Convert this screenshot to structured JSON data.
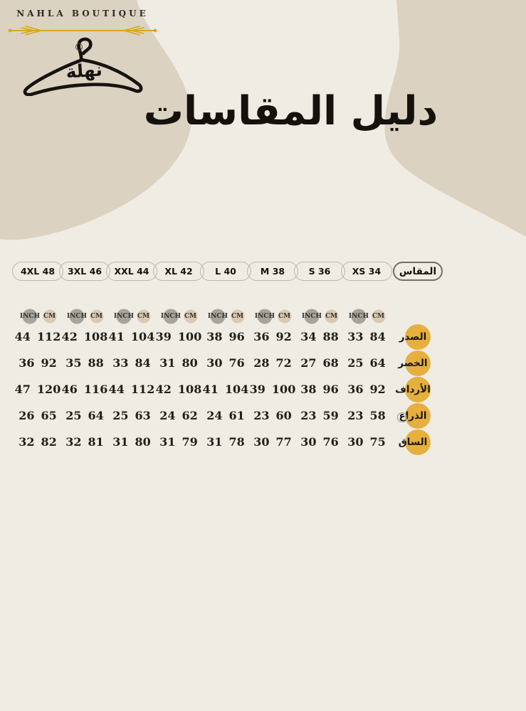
{
  "brand": {
    "name": "NAHLA BOUTIQUE",
    "logo_calligraphy": "نهلة"
  },
  "title": "دليل المقاسات",
  "colors": {
    "background": "#EFECE3",
    "blob_tan": "#DCD2C1",
    "accent_gold_circle": "#E6AF3E",
    "divider_gold": "#D9A521",
    "inch_circle_gray": "#A7A39D",
    "cm_circle_beige": "#D9CAB2",
    "text_black": "#15120e"
  },
  "size_chart": {
    "size_header_label": "المقاس",
    "sizes": [
      "4XL 48",
      "3XL 46",
      "XXL 44",
      "XL 42",
      "L 40",
      "M 38",
      "S 36",
      "XS 34"
    ],
    "unit_labels": {
      "inch": "INCH",
      "cm": "CM"
    },
    "rows": [
      {
        "label": "الصدر",
        "values": [
          [
            44,
            112
          ],
          [
            42,
            108
          ],
          [
            41,
            104
          ],
          [
            39,
            100
          ],
          [
            38,
            96
          ],
          [
            36,
            92
          ],
          [
            34,
            88
          ],
          [
            33,
            84
          ]
        ]
      },
      {
        "label": "الخصر",
        "values": [
          [
            36,
            92
          ],
          [
            35,
            88
          ],
          [
            33,
            84
          ],
          [
            31,
            80
          ],
          [
            30,
            76
          ],
          [
            28,
            72
          ],
          [
            27,
            68
          ],
          [
            25,
            64
          ]
        ]
      },
      {
        "label": "الأرداف",
        "values": [
          [
            47,
            120
          ],
          [
            46,
            116
          ],
          [
            44,
            112
          ],
          [
            42,
            108
          ],
          [
            41,
            104
          ],
          [
            39,
            100
          ],
          [
            38,
            96
          ],
          [
            36,
            92
          ]
        ]
      },
      {
        "label": "الذراع",
        "values": [
          [
            26,
            65
          ],
          [
            25,
            64
          ],
          [
            25,
            63
          ],
          [
            24,
            62
          ],
          [
            24,
            61
          ],
          [
            23,
            60
          ],
          [
            23,
            59
          ],
          [
            23,
            58
          ]
        ]
      },
      {
        "label": "الساق",
        "values": [
          [
            32,
            82
          ],
          [
            32,
            81
          ],
          [
            31,
            80
          ],
          [
            31,
            79
          ],
          [
            31,
            78
          ],
          [
            30,
            77
          ],
          [
            30,
            76
          ],
          [
            30,
            75
          ]
        ]
      }
    ]
  }
}
